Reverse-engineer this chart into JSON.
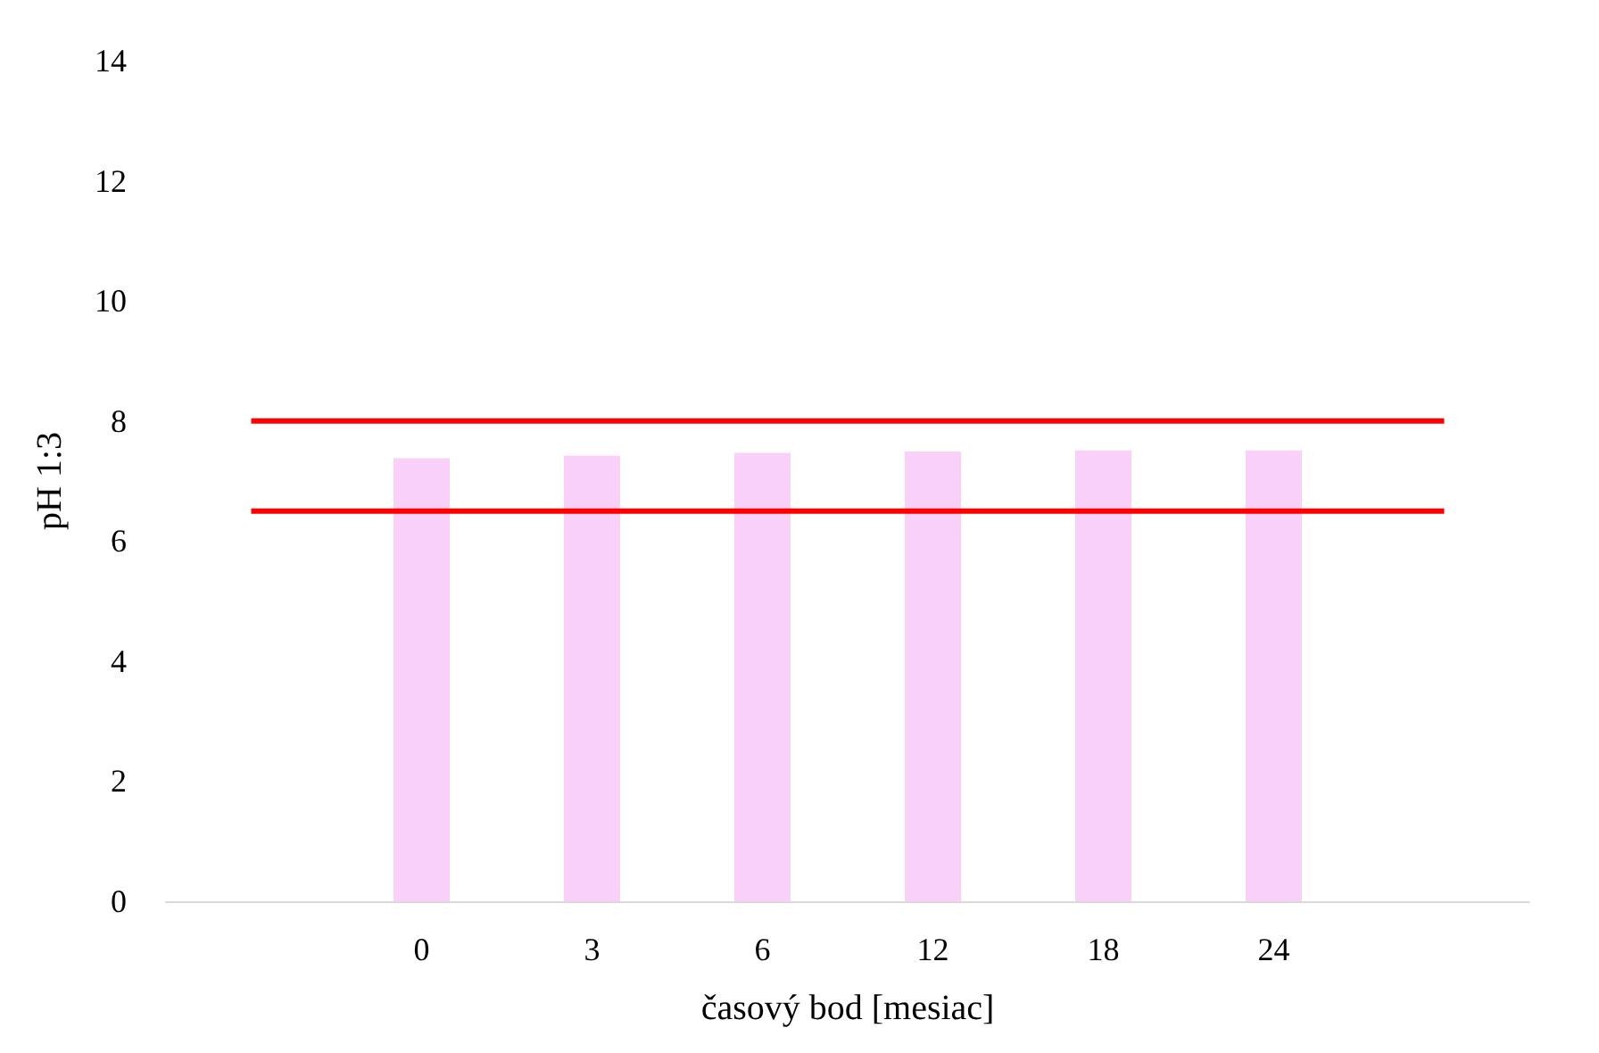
{
  "chart_data": {
    "type": "bar",
    "xlabel": "časový bod [mesiac]",
    "ylabel": "pH 1:3",
    "categories": [
      null,
      "0",
      "3",
      "6",
      "12",
      "18",
      "24",
      null
    ],
    "series": [
      {
        "color": "#f8d0f8",
        "values": [
          null,
          7.38,
          7.42,
          7.47,
          7.49,
          7.51,
          7.51,
          null
        ]
      },
      {
        "type": "line",
        "color": "#ff0000",
        "values": [
          8,
          8,
          8,
          8,
          8,
          8,
          8,
          8
        ]
      },
      {
        "type": "line",
        "color": "#ff0000",
        "values": [
          6.5,
          6.5,
          6.5,
          6.5,
          6.5,
          6.5,
          6.5,
          6.5
        ]
      }
    ],
    "ylim": [
      0,
      14
    ],
    "yticks": [
      0,
      2,
      4,
      6,
      8,
      10,
      12,
      14
    ],
    "grid": false,
    "marker": "none"
  }
}
